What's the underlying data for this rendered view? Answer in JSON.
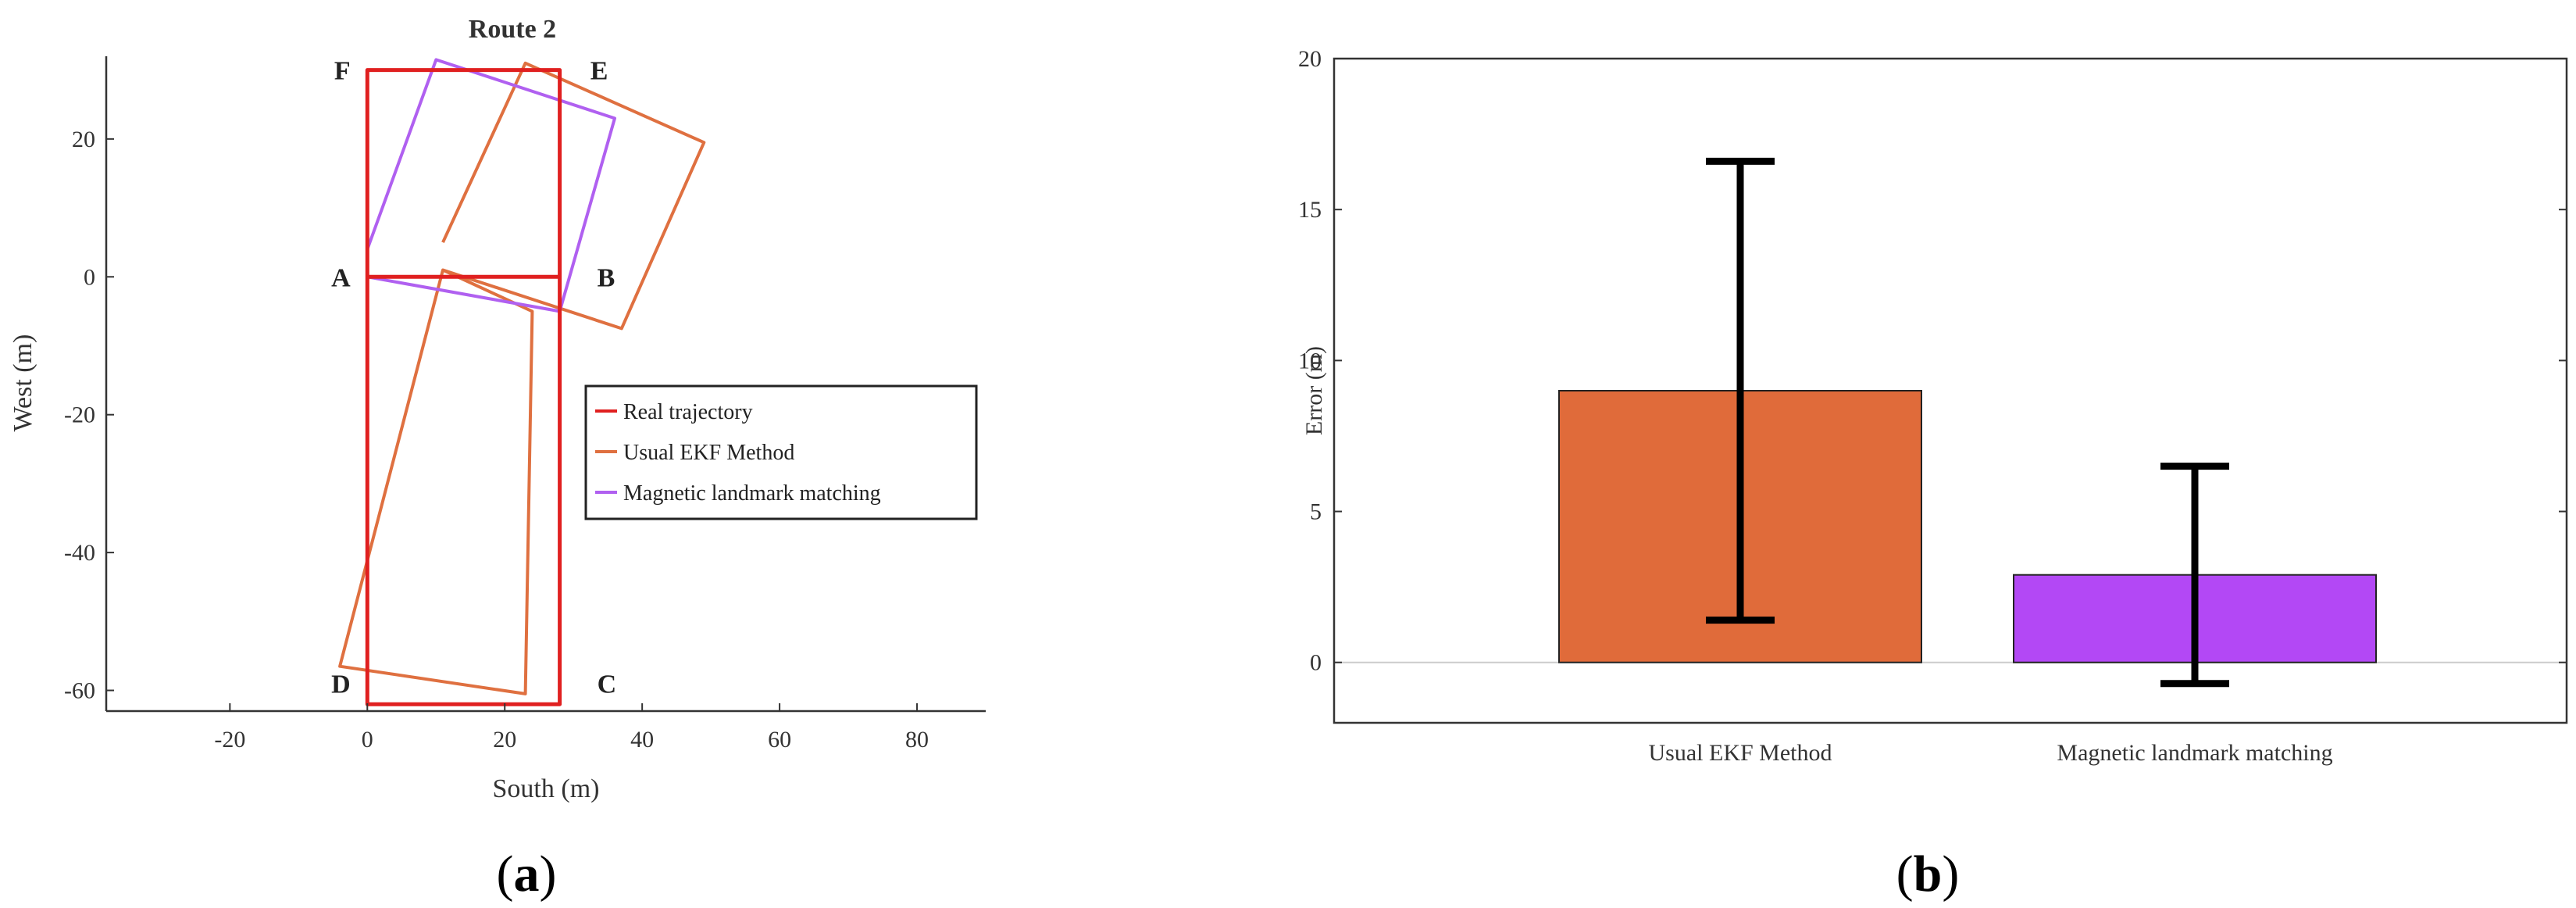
{
  "chart_data": [
    {
      "type": "line",
      "panel_label": "a",
      "title": "Route 2",
      "xlabel": "South (m)",
      "ylabel": "West (m)",
      "xlim": [
        -38,
        90
      ],
      "ylim": [
        -63,
        32
      ],
      "xticks": [
        -20,
        0,
        20,
        40,
        60,
        80
      ],
      "yticks": [
        -60,
        -40,
        -20,
        0,
        20
      ],
      "grid": false,
      "legend_position": "right-center",
      "point_labels": [
        {
          "label": "F",
          "x": -2,
          "y": 30
        },
        {
          "label": "E",
          "x": 32,
          "y": 30
        },
        {
          "label": "A",
          "x": -2,
          "y": 0
        },
        {
          "label": "B",
          "x": 33,
          "y": 0
        },
        {
          "label": "D",
          "x": -2,
          "y": -59
        },
        {
          "label": "C",
          "x": 33,
          "y": -59
        }
      ],
      "series": [
        {
          "name": "Real trajectory",
          "color": "#e02020",
          "points": [
            [
              0,
              0
            ],
            [
              28,
              0
            ],
            [
              28,
              -62
            ],
            [
              0,
              -62
            ],
            [
              0,
              30
            ],
            [
              28,
              30
            ],
            [
              28,
              0
            ]
          ]
        },
        {
          "name": "Usual EKF Method",
          "color": "#df7040",
          "points": [
            [
              11,
              5
            ],
            [
              23,
              31
            ],
            [
              49,
              19.5
            ],
            [
              37,
              -7.5
            ],
            [
              11,
              1
            ],
            [
              24,
              -5
            ],
            [
              23,
              -60.5
            ],
            [
              -4,
              -56.5
            ],
            [
              11,
              1
            ]
          ]
        },
        {
          "name": "Magnetic landmark matching",
          "color": "#b060f0",
          "points": [
            [
              0,
              4
            ],
            [
              10,
              31.5
            ],
            [
              36,
              23
            ],
            [
              28,
              -5
            ],
            [
              0,
              0
            ],
            [
              0,
              -62
            ],
            [
              28,
              -62
            ],
            [
              28,
              -5
            ]
          ]
        }
      ]
    },
    {
      "type": "bar",
      "panel_label": "b",
      "ylabel": "Error (m)",
      "categories": [
        "Usual EKF Method",
        "Magnetic landmark matching"
      ],
      "values": [
        9,
        2.9
      ],
      "error_low": [
        1.4,
        -0.7
      ],
      "error_high": [
        16.6,
        6.5
      ],
      "colors": [
        "#e06b3a",
        "#b348f5"
      ],
      "ylim": [
        -2,
        20
      ],
      "yticks": [
        0,
        5,
        10,
        15,
        20
      ],
      "grid": false
    }
  ]
}
